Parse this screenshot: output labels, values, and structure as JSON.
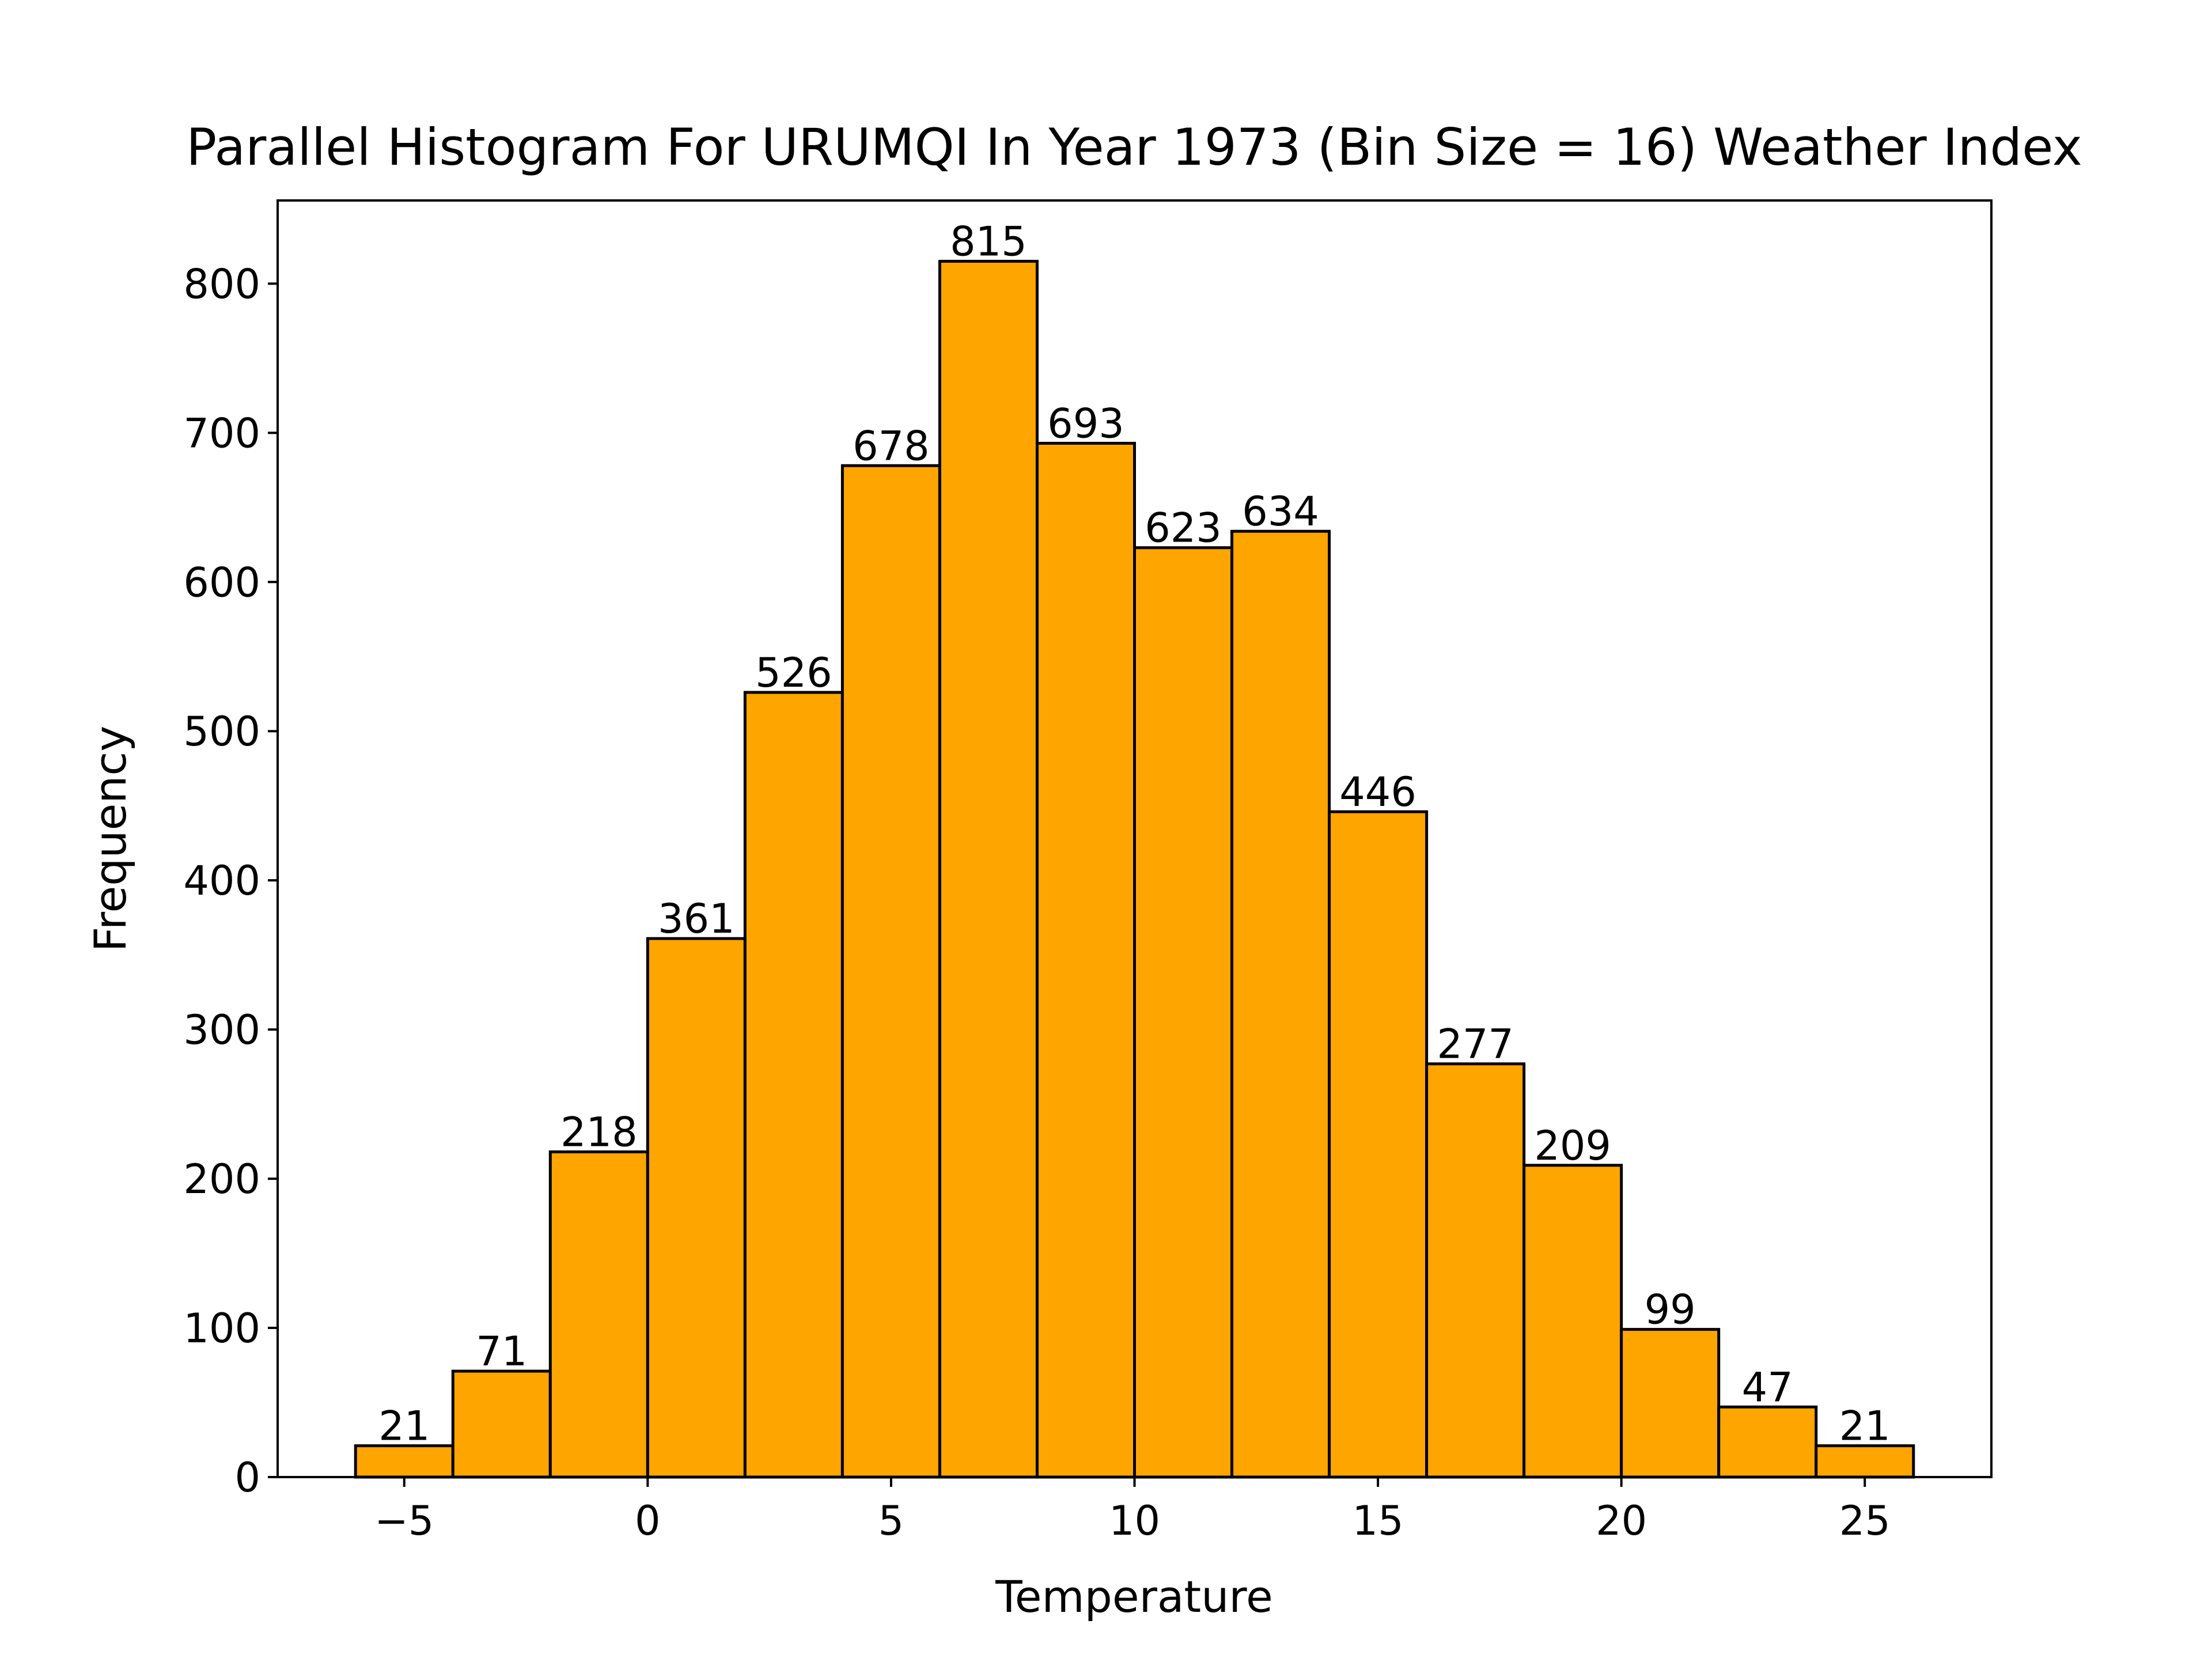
{
  "chart_data": {
    "type": "bar",
    "title": "Parallel Histogram For URUMQI In Year 1973 (Bin Size = 16) Weather Index",
    "xlabel": "Temperature",
    "ylabel": "Frequency",
    "bin_edges": [
      -6,
      -4,
      -2,
      0,
      2,
      4,
      6,
      8,
      10,
      12,
      14,
      16,
      18,
      20,
      22,
      24,
      26
    ],
    "values": [
      21,
      71,
      218,
      361,
      526,
      678,
      815,
      693,
      623,
      634,
      446,
      277,
      209,
      99,
      47,
      21
    ],
    "xlim": [
      -7.6,
      27.6
    ],
    "ylim": [
      0,
      855.75
    ],
    "xticks": [
      -5,
      0,
      5,
      10,
      15,
      20,
      25
    ],
    "xtick_labels": [
      "−5",
      "0",
      "5",
      "10",
      "15",
      "20",
      "25"
    ],
    "yticks": [
      0,
      100,
      200,
      300,
      400,
      500,
      600,
      700,
      800
    ],
    "ytick_labels": [
      "0",
      "100",
      "200",
      "300",
      "400",
      "500",
      "600",
      "700",
      "800"
    ],
    "bar_color": "#FFA500",
    "edge_color": "#000000",
    "grid": false,
    "legend": false
  }
}
